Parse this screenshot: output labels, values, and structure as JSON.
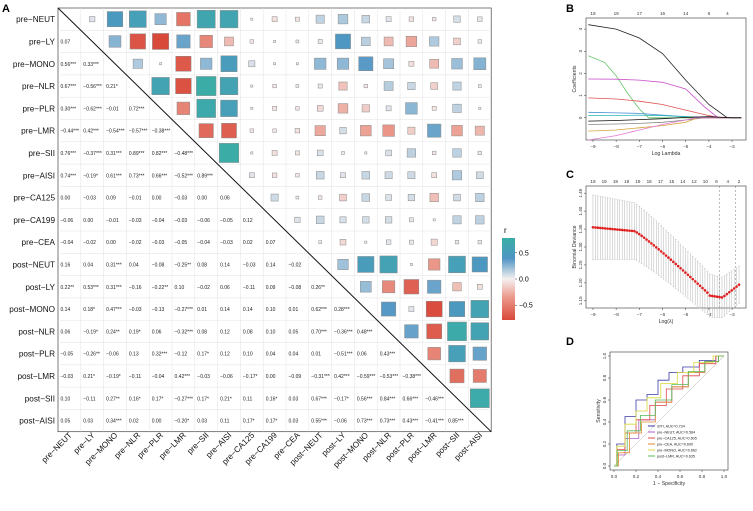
{
  "figure": {
    "panel_labels": [
      "A",
      "B",
      "C",
      "D"
    ]
  },
  "corr_matrix": {
    "variables": [
      "pre−NEUT",
      "pre−LY",
      "pre−MONO",
      "pre−NLR",
      "pre−PLR",
      "pre−LMR",
      "pre−SII",
      "pre−AISI",
      "pre−CA125",
      "pre−CA199",
      "pre−CEA",
      "post−NEUT",
      "post−LY",
      "post−MONO",
      "post−NLR",
      "post−PLR",
      "post−LMR",
      "post−SII",
      "post−AISI"
    ],
    "lower": [
      [],
      [
        "0.07"
      ],
      [
        "0.56***",
        "0.33***"
      ],
      [
        "0.67***",
        "−0.56***",
        "0.21*"
      ],
      [
        "0.30***",
        "−0.62***",
        "−0.01",
        "0.72***"
      ],
      [
        "−0.44***",
        "0.42***",
        "−0.54***",
        "−0.57***",
        "−0.38***"
      ],
      [
        "0.76***",
        "−0.37***",
        "0.31***",
        "0.89***",
        "0.82***",
        "−0.48***"
      ],
      [
        "0.74***",
        "−0.19*",
        "0.61***",
        "0.73***",
        "0.66***",
        "−0.52***",
        "0.89***"
      ],
      [
        "0.00",
        "−0.03",
        "0.09",
        "−0.01",
        "0.00",
        "−0.03",
        "0.00",
        "0.06"
      ],
      [
        "−0.06",
        "0.00",
        "−0.01",
        "−0.03",
        "−0.04",
        "−0.03",
        "−0.06",
        "−0.05",
        "0.12"
      ],
      [
        "−0.04",
        "−0.02",
        "0.00",
        "−0.02",
        "−0.03",
        "−0.05",
        "−0.04",
        "−0.03",
        "0.02",
        "0.07"
      ],
      [
        "0.16",
        "0.04",
        "0.31***",
        "0.04",
        "−0.08",
        "−0.25**",
        "0.08",
        "0.14",
        "−0.03",
        "0.14",
        "−0.02"
      ],
      [
        "0.22**",
        "0.53***",
        "0.31***",
        "−0.16",
        "−0.22**",
        "0.10",
        "−0.02",
        "0.06",
        "−0.11",
        "0.09",
        "−0.08",
        "0.26**"
      ],
      [
        "0.14",
        "0.18*",
        "0.47***",
        "−0.03",
        "−0.13",
        "−0.27***",
        "0.01",
        "0.14",
        "0.14",
        "0.10",
        "0.01",
        "0.62***",
        "0.28***"
      ],
      [
        "0.06",
        "−0.19*",
        "0.24**",
        "0.19*",
        "0.06",
        "−0.32***",
        "0.08",
        "0.12",
        "0.08",
        "0.10",
        "0.05",
        "0.70***",
        "−0.36***",
        "0.48***"
      ],
      [
        "−0.05",
        "−0.26**",
        "−0.06",
        "0.13",
        "0.32***",
        "−0.12",
        "0.17*",
        "0.12",
        "0.10",
        "0.04",
        "0.04",
        "0.01",
        "−0.51***",
        "0.06",
        "0.43***"
      ],
      [
        "−0.03",
        "0.21*",
        "−0.19*",
        "−0.11",
        "−0.04",
        "0.42***",
        "−0.03",
        "−0.06",
        "−0.17*",
        "0.00",
        "−0.09",
        "−0.31***",
        "0.42***",
        "−0.59***",
        "−0.53***",
        "−0.38***"
      ],
      [
        "0.10",
        "−0.11",
        "0.27**",
        "0.16*",
        "0.17*",
        "−0.27***",
        "0.17*",
        "0.21*",
        "0.11",
        "0.16*",
        "0.03",
        "0.67***",
        "−0.17*",
        "0.56***",
        "0.84***",
        "0.66***",
        "−0.46***"
      ],
      [
        "0.05",
        "0.03",
        "0.34***",
        "0.02",
        "0.00",
        "−0.20*",
        "0.03",
        "0.11",
        "0.17*",
        "0.17*",
        "0.03",
        "0.55***",
        "−0.06",
        "0.73***",
        "0.73***",
        "0.43***",
        "−0.41***",
        "0.85***"
      ]
    ],
    "legend": {
      "title": "r",
      "ticks": [
        "0.5",
        "0.0",
        "−0.5"
      ],
      "colors": {
        "high": "#3aaea5",
        "mid_high": "#4f95c4",
        "mid": "#f5f0f0",
        "mid_low": "#eb9a8c",
        "low": "#d9493a"
      }
    }
  },
  "panel_b": {
    "xlabel": "Log Lambda",
    "ylabel": "Coefficients",
    "top_ticks": [
      "19",
      "19",
      "17",
      "16",
      "14",
      "6",
      "4"
    ],
    "x_ticks": [
      "−9",
      "−8",
      "−7",
      "−6",
      "−5",
      "−4",
      "−3"
    ],
    "y_ticks": [
      "0",
      "1",
      "2",
      "3",
      "4"
    ]
  },
  "panel_c": {
    "xlabel": "Log(λ)",
    "ylabel": "Binomial Deviance",
    "top_ticks": [
      "19",
      "19",
      "19",
      "19",
      "19",
      "18",
      "17",
      "15",
      "14",
      "12",
      "10",
      "6",
      "4",
      "2"
    ],
    "x_ticks": [
      "−9",
      "−8",
      "−7",
      "−6",
      "−5",
      "−4",
      "−3"
    ],
    "y_ticks": [
      "1.15",
      "1.20",
      "1.25",
      "1.30",
      "1.35",
      "1.40",
      "1.45"
    ]
  },
  "panel_d": {
    "xlabel": "1 − Specificity",
    "ylabel": "Sensitivity",
    "x_ticks": [
      "0.0",
      "0.2",
      "0.4",
      "0.6",
      "0.8",
      "1.0"
    ],
    "y_ticks": [
      "0.0",
      "0.2",
      "0.4",
      "0.6",
      "0.8",
      "1.0"
    ],
    "legend": [
      {
        "label": "SITI, AUC=0.734",
        "color": "#3b3ba8"
      },
      {
        "label": "pre−NEUT, AUC=0.584",
        "color": "#b05cc8"
      },
      {
        "label": "pre−CA125, AUC=0.605",
        "color": "#e0484a"
      },
      {
        "label": "pre−CEA, AUC=0.600",
        "color": "#e08a2e"
      },
      {
        "label": "pre−MONO, AUC=0.662",
        "color": "#d8d83a"
      },
      {
        "label": "post−LMR, AUC=0.635",
        "color": "#58b858"
      }
    ]
  }
}
